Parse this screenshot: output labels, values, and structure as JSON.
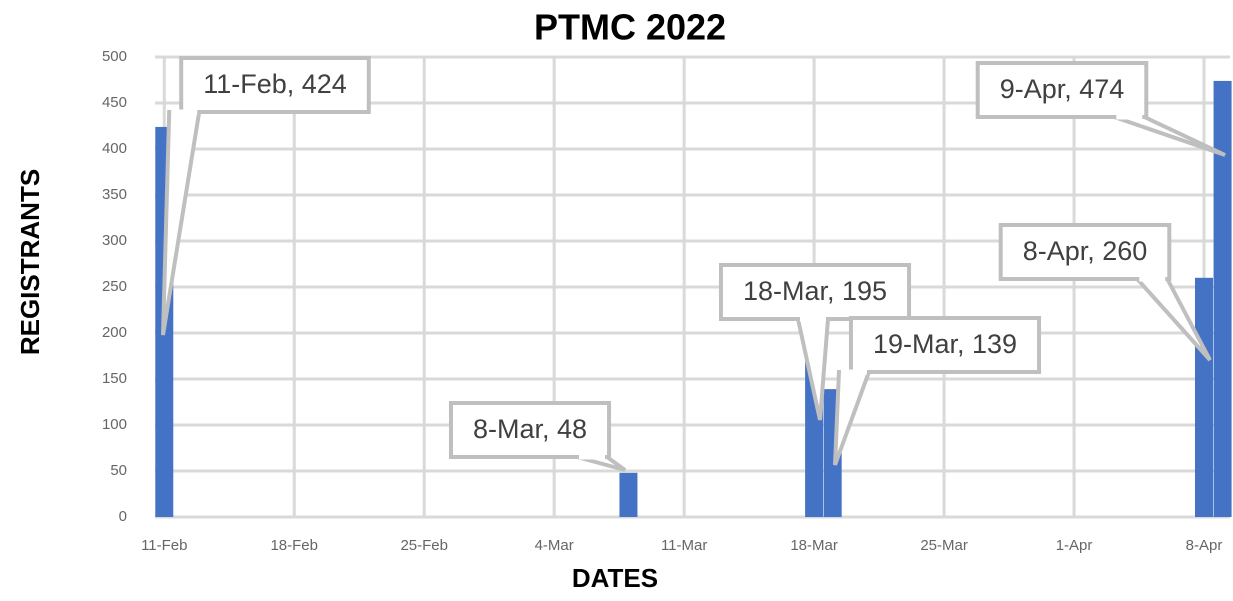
{
  "chart_data": {
    "type": "bar",
    "title": "PTMC 2022",
    "x_label": "DATES",
    "y_label": "REGISTRANTS",
    "x": [
      42,
      67,
      77,
      78,
      98,
      99
    ],
    "values": [
      424,
      48,
      195,
      139,
      260,
      474
    ],
    "value_labels": [
      "11-Feb, 424",
      "8-Mar, 48",
      "18-Mar, 195",
      "19-Mar, 139",
      "8-Apr, 260",
      "9-Apr, 474"
    ],
    "color": "#4472c4",
    "xlim": [
      41.5,
      99.4
    ],
    "xticks": [
      {
        "value": 42,
        "label": "11-Feb"
      },
      {
        "value": 49,
        "label": "18-Feb"
      },
      {
        "value": 56,
        "label": "25-Feb"
      },
      {
        "value": 63,
        "label": "4-Mar"
      },
      {
        "value": 70,
        "label": "11-Mar"
      },
      {
        "value": 77,
        "label": "18-Mar"
      },
      {
        "value": 84,
        "label": "25-Mar"
      },
      {
        "value": 91,
        "label": "1-Apr"
      },
      {
        "value": 98,
        "label": "8-Apr"
      }
    ],
    "ylim": [
      0,
      500
    ],
    "yticks": [
      0,
      50,
      100,
      150,
      200,
      250,
      300,
      350,
      400,
      450,
      500
    ],
    "grid": true
  }
}
